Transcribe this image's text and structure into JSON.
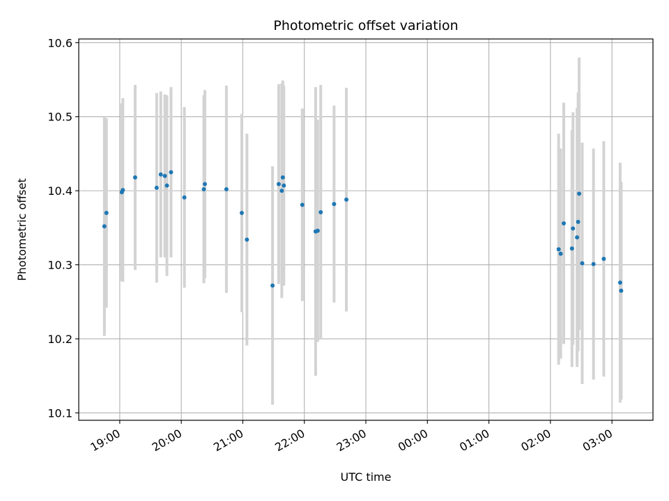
{
  "chart_data": {
    "type": "scatter",
    "title": "Photometric offset variation",
    "xlabel": "UTC time",
    "ylabel": "Photometric offset",
    "x_axis": "time (hours from 00:00 UTC, wrapping past midnight)",
    "xlim": [
      "18:20",
      "03:40"
    ],
    "ylim": [
      10.09,
      10.605
    ],
    "xticks": [
      "19:00",
      "20:00",
      "21:00",
      "22:00",
      "23:00",
      "00:00",
      "01:00",
      "02:00",
      "03:00"
    ],
    "yticks": [
      "10.1",
      "10.2",
      "10.3",
      "10.4",
      "10.5",
      "10.6"
    ],
    "grid": true,
    "marker_color": "#1f77b4",
    "errorbar_color": "#d3d3d3",
    "points": [
      {
        "t": "18:45",
        "y": 10.352,
        "err": 0.148
      },
      {
        "t": "18:47",
        "y": 10.37,
        "err": 0.128
      },
      {
        "t": "19:02",
        "y": 10.398,
        "err": 0.12
      },
      {
        "t": "19:03",
        "y": 10.401,
        "err": 0.124
      },
      {
        "t": "19:15",
        "y": 10.418,
        "err": 0.125
      },
      {
        "t": "19:36",
        "y": 10.404,
        "err": 0.128
      },
      {
        "t": "19:40",
        "y": 10.422,
        "err": 0.112
      },
      {
        "t": "19:44",
        "y": 10.42,
        "err": 0.11
      },
      {
        "t": "19:46",
        "y": 10.407,
        "err": 0.122
      },
      {
        "t": "19:50",
        "y": 10.425,
        "err": 0.115
      },
      {
        "t": "20:03",
        "y": 10.391,
        "err": 0.122
      },
      {
        "t": "20:22",
        "y": 10.402,
        "err": 0.127
      },
      {
        "t": "20:23",
        "y": 10.409,
        "err": 0.127
      },
      {
        "t": "20:44",
        "y": 10.402,
        "err": 0.14
      },
      {
        "t": "20:59",
        "y": 10.37,
        "err": 0.134
      },
      {
        "t": "21:04",
        "y": 10.334,
        "err": 0.143
      },
      {
        "t": "21:29",
        "y": 10.272,
        "err": 0.161
      },
      {
        "t": "21:35",
        "y": 10.409,
        "err": 0.135
      },
      {
        "t": "21:38",
        "y": 10.4,
        "err": 0.145
      },
      {
        "t": "21:39",
        "y": 10.418,
        "err": 0.131
      },
      {
        "t": "21:40",
        "y": 10.407,
        "err": 0.135
      },
      {
        "t": "21:58",
        "y": 10.381,
        "err": 0.13
      },
      {
        "t": "22:11",
        "y": 10.345,
        "err": 0.195
      },
      {
        "t": "22:13",
        "y": 10.346,
        "err": 0.15
      },
      {
        "t": "22:16",
        "y": 10.371,
        "err": 0.172
      },
      {
        "t": "22:29",
        "y": 10.382,
        "err": 0.133
      },
      {
        "t": "22:41",
        "y": 10.388,
        "err": 0.151
      },
      {
        "t": "02:08",
        "y": 10.321,
        "err": 0.156
      },
      {
        "t": "02:10",
        "y": 10.315,
        "err": 0.142
      },
      {
        "t": "02:13",
        "y": 10.356,
        "err": 0.163
      },
      {
        "t": "02:21",
        "y": 10.322,
        "err": 0.16
      },
      {
        "t": "02:22",
        "y": 10.349,
        "err": 0.157
      },
      {
        "t": "02:26",
        "y": 10.337,
        "err": 0.175
      },
      {
        "t": "02:27",
        "y": 10.358,
        "err": 0.175
      },
      {
        "t": "02:28",
        "y": 10.396,
        "err": 0.184
      },
      {
        "t": "02:31",
        "y": 10.302,
        "err": 0.163
      },
      {
        "t": "02:42",
        "y": 10.301,
        "err": 0.156
      },
      {
        "t": "02:52",
        "y": 10.308,
        "err": 0.159
      },
      {
        "t": "03:08",
        "y": 10.276,
        "err": 0.162
      },
      {
        "t": "03:09",
        "y": 10.265,
        "err": 0.147
      }
    ]
  }
}
